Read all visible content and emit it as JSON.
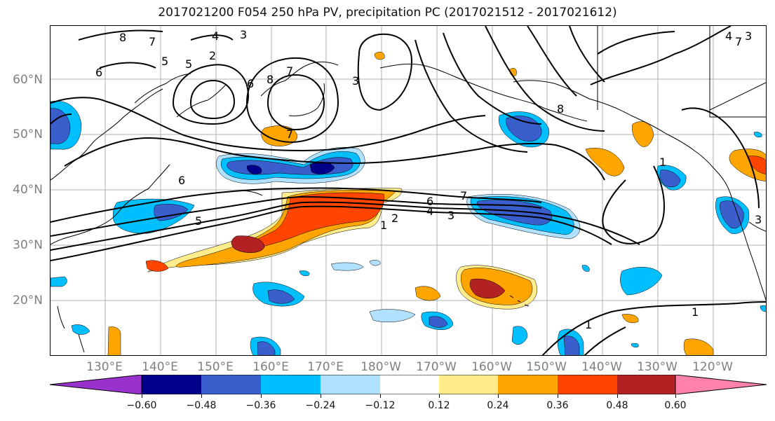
{
  "title": "2017021200 F054 250 hPa PV, precipitation PC (2017021512 - 2017021612)",
  "lat_labels": [
    "60°N",
    "50°N",
    "40°N",
    "30°N",
    "20°N"
  ],
  "lon_labels": [
    "130°E",
    "140°E",
    "150°E",
    "160°E",
    "170°E",
    "180°W",
    "170°W",
    "160°W",
    "150°W",
    "140°W",
    "130°W",
    "120°W"
  ],
  "colorbar": {
    "colors": [
      "#9932cc",
      "#00008b",
      "#3a5fcd",
      "#00bfff",
      "#b0e2ff",
      "#ffffff",
      "#ffec8b",
      "#ffa500",
      "#ff4500",
      "#b22222",
      "#ff82ab"
    ],
    "tick_labels": [
      "−0.60",
      "−0.48",
      "−0.36",
      "−0.24",
      "−0.12",
      "0.12",
      "0.24",
      "0.36",
      "0.48",
      "0.60"
    ]
  },
  "contour_labels": [
    "8",
    "7",
    "5",
    "4",
    "3",
    "2",
    "6",
    "6",
    "8",
    "7",
    "3",
    "7",
    "6",
    "5",
    "7",
    "6",
    "4",
    "3",
    "2",
    "1",
    "8",
    "1",
    "3",
    "1",
    "1",
    "5",
    "4",
    "3",
    "7"
  ],
  "colors": {
    "coast": "#000000",
    "grid": "#b0b0b0",
    "contour": "#000000",
    "axis_label": "#7f7f7f"
  }
}
